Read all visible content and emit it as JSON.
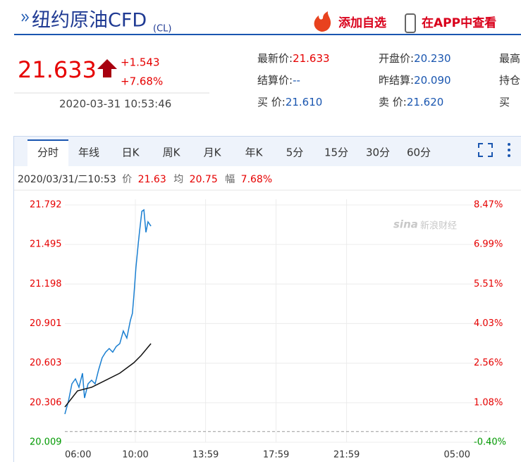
{
  "header": {
    "title": "纽约原油CFD",
    "code": "(CL)",
    "add_watch": "添加自选",
    "app_view": "在APP中查看"
  },
  "quote": {
    "price": "21.633",
    "change": "+1.543",
    "change_pct": "+7.68%",
    "time": "2020-03-31 10:53:46"
  },
  "stats": {
    "rows": [
      [
        {
          "label": "最新价:",
          "value": "21.633"
        },
        {
          "label": "开盘价:",
          "value": "20.230"
        },
        {
          "label": "最高"
        }
      ],
      [
        {
          "label": "结算价:",
          "value": "--"
        },
        {
          "label": "昨结算:",
          "value": "20.090"
        },
        {
          "label": "持仓"
        }
      ],
      [
        {
          "label": "买  价:",
          "value": "21.610"
        },
        {
          "label": "卖  价:",
          "value": "21.620"
        },
        {
          "label": "买"
        }
      ]
    ]
  },
  "tabs": [
    "分时",
    "年线",
    "日K",
    "周K",
    "月K",
    "年K",
    "5分",
    "15分",
    "30分",
    "60分"
  ],
  "info": {
    "datetime": "2020/03/31/二10:53",
    "price_label": "价",
    "price": "21.63",
    "avg_label": "均",
    "avg": "20.75",
    "amp_label": "幅",
    "amp": "7.68%"
  },
  "chart_data": {
    "type": "line",
    "watermark": "sina",
    "watermark_text": "新浪财经",
    "xlim": [
      "06:00",
      "05:00"
    ],
    "xticks": [
      "06:00",
      "10:00",
      "13:59",
      "17:59",
      "21:59",
      "05:00"
    ],
    "ylim": [
      20.009,
      21.792
    ],
    "yticks": [
      20.009,
      20.306,
      20.603,
      20.901,
      21.198,
      21.495,
      21.792
    ],
    "y2lim": [
      -0.4,
      8.47
    ],
    "y2ticks": [
      {
        "value": -0.4,
        "label": "-0.40%"
      },
      {
        "value": 1.08,
        "label": "1.08%"
      },
      {
        "value": 2.56,
        "label": "2.56%"
      },
      {
        "value": 4.03,
        "label": "4.03%"
      },
      {
        "value": 5.51,
        "label": "5.51%"
      },
      {
        "value": 6.99,
        "label": "6.99%"
      },
      {
        "value": 8.47,
        "label": "8.47%"
      }
    ],
    "baseline": 20.09,
    "series": [
      {
        "name": "价",
        "color": "#1a7fd1",
        "x": [
          "06:00",
          "06:12",
          "06:24",
          "06:36",
          "06:48",
          "07:00",
          "07:07",
          "07:19",
          "07:31",
          "07:43",
          "07:55",
          "08:07",
          "08:19",
          "08:31",
          "08:43",
          "08:55",
          "09:07",
          "09:19",
          "09:31",
          "09:43",
          "09:50",
          "09:55",
          "10:02",
          "10:10",
          "10:14",
          "10:22",
          "10:29",
          "10:36",
          "10:43",
          "10:53"
        ],
        "values": [
          20.221,
          20.316,
          20.448,
          20.485,
          20.422,
          20.528,
          20.342,
          20.448,
          20.475,
          20.448,
          20.554,
          20.644,
          20.686,
          20.713,
          20.686,
          20.729,
          20.75,
          20.845,
          20.792,
          20.924,
          20.977,
          21.11,
          21.321,
          21.506,
          21.586,
          21.744,
          21.755,
          21.586,
          21.665,
          21.633
        ]
      },
      {
        "name": "均",
        "color": "#111111",
        "x": [
          "06:00",
          "06:43",
          "07:31",
          "08:19",
          "09:07",
          "09:55",
          "10:19",
          "10:53"
        ],
        "values": [
          20.274,
          20.395,
          20.422,
          20.475,
          20.528,
          20.607,
          20.66,
          20.75
        ]
      }
    ]
  }
}
